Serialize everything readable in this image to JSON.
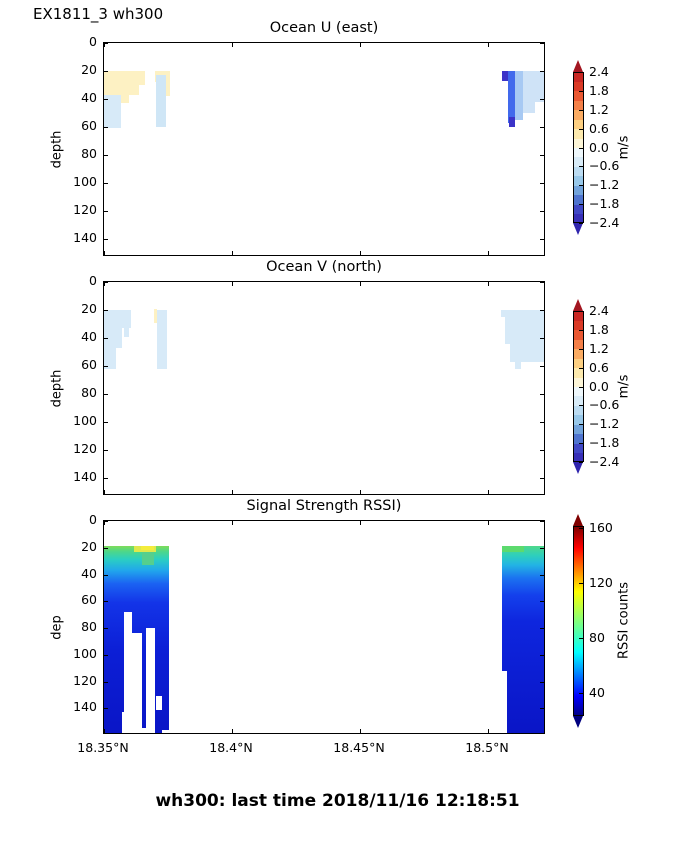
{
  "header": {
    "run_label": "EX1811_3 wh300"
  },
  "chart_data": {
    "type": "heatmap",
    "figure_title": "wh300: last time 2018/11/16 12:18:51",
    "x_axis": {
      "lim": [
        18.35,
        18.5227
      ],
      "ticks": [
        {
          "v": 18.35,
          "label": "18.35°N"
        },
        {
          "v": 18.4,
          "label": "18.4°N"
        },
        {
          "v": 18.45,
          "label": "18.45°N"
        },
        {
          "v": 18.5,
          "label": "18.5°N"
        }
      ]
    },
    "colormap_uv": {
      "arrow_top": "#a31621",
      "arrow_bottom": "#2f24ad",
      "segments": [
        "#c92723",
        "#da3a26",
        "#ea5832",
        "#f48048",
        "#fbac63",
        "#fdd082",
        "#fdeaae",
        "#fdf6d8",
        "#eff8fc",
        "#d9ecf8",
        "#bcdcf2",
        "#98c8e9",
        "#72a3db",
        "#4f74cf",
        "#4048c5",
        "#372fb8"
      ]
    },
    "colormap_jet": {
      "arrow_top": "#7f0000",
      "arrow_bottom": "#00007f",
      "stops": [
        [
          0,
          "#7f0000"
        ],
        [
          0.11,
          "#ff0000"
        ],
        [
          0.34,
          "#ffff00"
        ],
        [
          0.5,
          "#7fff7f"
        ],
        [
          0.66,
          "#00ffff"
        ],
        [
          0.89,
          "#0000ff"
        ],
        [
          1,
          "#00007f"
        ]
      ]
    },
    "panels": [
      {
        "id": "ocean-u",
        "title": "Ocean U (east)",
        "ylabel": "depth",
        "ylim": [
          0,
          152.9
        ],
        "yticks": [
          0,
          20,
          40,
          60,
          80,
          100,
          120,
          140
        ],
        "colorbar": {
          "kind": "segments",
          "unit": "m/s",
          "range": [
            -2.4,
            2.4
          ],
          "ticks": [
            "2.4",
            "1.8",
            "1.2",
            "0.6",
            "0.0",
            "−0.6",
            "−1.2",
            "−1.8",
            "−2.4"
          ]
        },
        "cells": [
          {
            "lat": [
              18.35,
              18.3636
            ],
            "depth": [
              20,
              37
            ],
            "value": 0.3,
            "color": "#fdf1c3"
          },
          {
            "lat": [
              18.3636,
              18.3659
            ],
            "depth": [
              20,
              30
            ],
            "value": 0.3,
            "color": "#fdf1c3"
          },
          {
            "lat": [
              18.3566,
              18.3598
            ],
            "depth": [
              37,
              43
            ],
            "value": 0.3,
            "color": "#fdf1c3"
          },
          {
            "lat": [
              18.35,
              18.3566
            ],
            "depth": [
              37,
              61
            ],
            "value": -0.3,
            "color": "#d7eaf8"
          },
          {
            "lat": [
              18.3698,
              18.3758
            ],
            "depth": [
              20,
              28
            ],
            "value": 0.3,
            "color": "#fdf1c3"
          },
          {
            "lat": [
              18.3742,
              18.3758
            ],
            "depth": [
              28,
              38
            ],
            "value": 0.3,
            "color": "#fdf1c3"
          },
          {
            "lat": [
              18.3702,
              18.3742
            ],
            "depth": [
              23,
              60
            ],
            "value": -0.4,
            "color": "#cfe6f6"
          },
          {
            "lat": [
              18.5056,
              18.508
            ],
            "depth": [
              20,
              27
            ],
            "value": -2.1,
            "color": "#3c33c8"
          },
          {
            "lat": [
              18.508,
              18.5106
            ],
            "depth": [
              20,
              57
            ],
            "value": -1.5,
            "color": "#4169ec"
          },
          {
            "lat": [
              18.5082,
              18.5104
            ],
            "depth": [
              53,
              60
            ],
            "value": -2.1,
            "color": "#3c33c8"
          },
          {
            "lat": [
              18.5106,
              18.5138
            ],
            "depth": [
              20,
              55
            ],
            "value": -0.8,
            "color": "#a7c9f3"
          },
          {
            "lat": [
              18.5138,
              18.5227
            ],
            "depth": [
              20,
              42
            ],
            "value": -0.3,
            "color": "#cfe3f7"
          },
          {
            "lat": [
              18.5138,
              18.5182
            ],
            "depth": [
              42,
              50
            ],
            "value": -0.3,
            "color": "#cfe3f7"
          }
        ]
      },
      {
        "id": "ocean-v",
        "title": "Ocean V (north)",
        "ylabel": "depth",
        "ylim": [
          0,
          152.9
        ],
        "yticks": [
          0,
          20,
          40,
          60,
          80,
          100,
          120,
          140
        ],
        "colorbar": {
          "kind": "segments",
          "unit": "m/s",
          "range": [
            -2.4,
            2.4
          ],
          "ticks": [
            "2.4",
            "1.8",
            "1.2",
            "0.6",
            "0.0",
            "−0.6",
            "−1.2",
            "−1.8",
            "−2.4"
          ]
        },
        "cells": [
          {
            "lat": [
              18.35,
              18.3605
            ],
            "depth": [
              20,
              33
            ],
            "value": -0.3,
            "color": "#d7eaf8"
          },
          {
            "lat": [
              18.35,
              18.357
            ],
            "depth": [
              33,
              47
            ],
            "value": -0.3,
            "color": "#d7eaf8"
          },
          {
            "lat": [
              18.35,
              18.3548
            ],
            "depth": [
              47,
              62
            ],
            "value": -0.3,
            "color": "#d7eaf8"
          },
          {
            "lat": [
              18.358,
              18.3598
            ],
            "depth": [
              33,
              39
            ],
            "value": -0.3,
            "color": "#d7eaf8"
          },
          {
            "lat": [
              18.3696,
              18.3706
            ],
            "depth": [
              19,
              29
            ],
            "value": 0.2,
            "color": "#fdf1c3"
          },
          {
            "lat": [
              18.3706,
              18.3748
            ],
            "depth": [
              20,
              62
            ],
            "value": -0.3,
            "color": "#d7eaf8"
          },
          {
            "lat": [
              18.505,
              18.5066
            ],
            "depth": [
              20,
              25
            ],
            "value": -0.3,
            "color": "#d7eaf8"
          },
          {
            "lat": [
              18.5066,
              18.5227
            ],
            "depth": [
              20,
              44
            ],
            "value": -0.3,
            "color": "#d7eaf8"
          },
          {
            "lat": [
              18.5086,
              18.5227
            ],
            "depth": [
              44,
              57
            ],
            "value": -0.3,
            "color": "#d7eaf8"
          },
          {
            "lat": [
              18.5106,
              18.5128
            ],
            "depth": [
              57,
              62
            ],
            "value": -0.3,
            "color": "#d7eaf8"
          }
        ]
      },
      {
        "id": "rssi",
        "title": "Signal Strength RSSI)",
        "ylabel": "dep",
        "ylim": [
          0,
          160
        ],
        "yticks": [
          0,
          20,
          40,
          60,
          80,
          100,
          120,
          140
        ],
        "colorbar": {
          "kind": "jet",
          "unit": "RSSI counts",
          "range": [
            24,
            162
          ],
          "ticks": [
            160,
            120,
            80,
            40
          ]
        },
        "blocks": [
          {
            "lat": [
              18.35,
              18.3752
            ],
            "depth": [
              19,
              160
            ],
            "stops": [
              [
                0,
                "#7edc5a"
              ],
              [
                0.03,
                "#4cd78b"
              ],
              [
                0.07,
                "#2bcfc2"
              ],
              [
                0.13,
                "#21a6ec"
              ],
              [
                0.2,
                "#1b62f2"
              ],
              [
                0.3,
                "#1334e8"
              ],
              [
                0.55,
                "#0c1fd6"
              ],
              [
                1,
                "#0a15c6"
              ]
            ]
          },
          {
            "lat": [
              18.5055,
              18.5227
            ],
            "depth": [
              19,
              160
            ],
            "stops": [
              [
                0,
                "#4fd98a"
              ],
              [
                0.05,
                "#2ecfbc"
              ],
              [
                0.1,
                "#23b4e4"
              ],
              [
                0.17,
                "#1b72f0"
              ],
              [
                0.26,
                "#1440ec"
              ],
              [
                0.4,
                "#0e26de"
              ],
              [
                1,
                "#0a15c6"
              ]
            ]
          }
        ],
        "cells": [
          {
            "lat": [
              18.3616,
              18.3704
            ],
            "depth": [
              19,
              23
            ],
            "value": 105,
            "color": "#dfe84c"
          },
          {
            "lat": [
              18.3645,
              18.3694
            ],
            "depth": [
              19,
              22
            ],
            "value": 115,
            "color": "#f4ed3c"
          },
          {
            "lat": [
              18.365,
              18.3697
            ],
            "depth": [
              23,
              33
            ],
            "value": 90,
            "color": "#55cf8d"
          },
          {
            "lat": [
              18.5055,
              18.514
            ],
            "depth": [
              19,
              23
            ],
            "value": 95,
            "color": "#5cda6e"
          },
          {
            "lat": [
              18.358,
              18.3608
            ],
            "depth": [
              68,
              160
            ],
            "value": null,
            "color": "#ffffff"
          },
          {
            "lat": [
              18.3608,
              18.3647
            ],
            "depth": [
              84,
              160
            ],
            "value": null,
            "color": "#ffffff"
          },
          {
            "lat": [
              18.3663,
              18.37
            ],
            "depth": [
              80,
              160
            ],
            "value": null,
            "color": "#ffffff"
          },
          {
            "lat": [
              18.3569,
              18.3585
            ],
            "depth": [
              143,
              160
            ],
            "value": null,
            "color": "#ffffff"
          },
          {
            "lat": [
              18.3647,
              18.3663
            ],
            "depth": [
              155,
              160
            ],
            "value": null,
            "color": "#ffffff"
          },
          {
            "lat": [
              18.3702,
              18.3728
            ],
            "depth": [
              131,
              141
            ],
            "value": null,
            "color": "#ffffff"
          },
          {
            "lat": [
              18.3728,
              18.3752
            ],
            "depth": [
              156,
              160
            ],
            "value": null,
            "color": "#ffffff"
          },
          {
            "lat": [
              18.5055,
              18.5076
            ],
            "depth": [
              112,
              160
            ],
            "value": null,
            "color": "#ffffff"
          }
        ]
      }
    ]
  }
}
